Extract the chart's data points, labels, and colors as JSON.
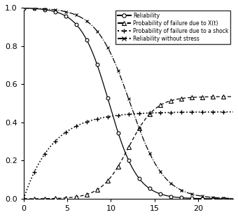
{
  "title": "",
  "xlim": [
    0,
    24
  ],
  "ylim": [
    0.0,
    1.0
  ],
  "xticks": [
    0,
    5,
    10,
    15,
    20
  ],
  "yticks": [
    0.0,
    0.2,
    0.4,
    0.6,
    0.8,
    1.0
  ],
  "color": "black",
  "legend_entries": [
    "Reliability",
    "Probability of failure due to X(t)",
    "Probability of failure due to a shock",
    "Reliability without stress"
  ],
  "R_k": 0.62,
  "R_t0": 9.8,
  "Rns_k": 0.52,
  "Rns_t0": 12.2,
  "Pshock_plateau": 0.455,
  "Pshock_rate": 0.3,
  "Pdet_plateau": 0.535,
  "Pdet_k": 0.65,
  "Pdet_t0": 12.0,
  "n_curve_pts": 400,
  "marker_every_curve": 25,
  "marker_every_pts": 20
}
